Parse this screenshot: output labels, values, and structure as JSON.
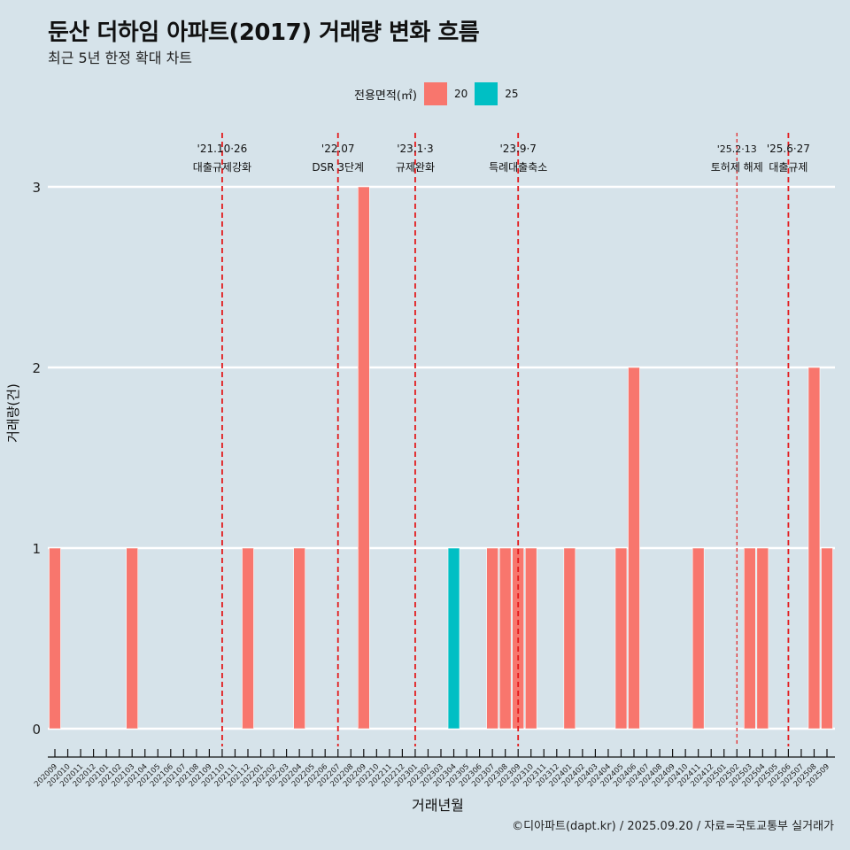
{
  "header": {
    "title": "둔산 더하임 아파트(2017) 거래량 변화 흐름",
    "subtitle": "최근 5년 한정 확대 차트"
  },
  "legend": {
    "title": "전용면적(㎡)",
    "items": [
      {
        "label": "20",
        "color": "#f8766d"
      },
      {
        "label": "25",
        "color": "#00bfc4"
      }
    ]
  },
  "caption": "©디아파트(dapt.kr) / 2025.09.20 / 자료=국토교통부 실거래가",
  "chart_data": {
    "type": "bar",
    "stacked": true,
    "title": "둔산 더하임 아파트(2017) 거래량 변화 흐름",
    "subtitle": "최근 5년 한정 확대 차트",
    "xlabel": "거래년월",
    "ylabel": "거래량(건)",
    "ylim": [
      0,
      3
    ],
    "yticks": [
      0,
      1,
      2,
      3
    ],
    "grid": true,
    "legend_position": "top",
    "categories": [
      "202009",
      "202010",
      "202011",
      "202012",
      "202101",
      "202102",
      "202103",
      "202104",
      "202105",
      "202106",
      "202107",
      "202108",
      "202109",
      "202110",
      "202111",
      "202112",
      "202201",
      "202202",
      "202203",
      "202204",
      "202205",
      "202206",
      "202207",
      "202208",
      "202209",
      "202210",
      "202211",
      "202212",
      "202301",
      "202302",
      "202303",
      "202304",
      "202305",
      "202306",
      "202307",
      "202308",
      "202309",
      "202310",
      "202311",
      "202312",
      "202401",
      "202402",
      "202403",
      "202404",
      "202405",
      "202406",
      "202407",
      "202408",
      "202409",
      "202410",
      "202411",
      "202412",
      "202501",
      "202502",
      "202503",
      "202504",
      "202505",
      "202506",
      "202507",
      "202508",
      "202509"
    ],
    "series": [
      {
        "name": "20",
        "color": "#f8766d",
        "values": [
          1,
          0,
          0,
          0,
          0,
          0,
          1,
          0,
          0,
          0,
          0,
          0,
          0,
          0,
          0,
          1,
          0,
          0,
          0,
          1,
          0,
          0,
          0,
          0,
          3,
          0,
          0,
          0,
          0,
          0,
          0,
          0,
          0,
          0,
          1,
          1,
          1,
          1,
          0,
          0,
          1,
          0,
          0,
          0,
          1,
          2,
          0,
          0,
          0,
          0,
          1,
          0,
          0,
          0,
          1,
          1,
          0,
          0,
          0,
          2,
          1
        ]
      },
      {
        "name": "25",
        "color": "#00bfc4",
        "values": [
          0,
          0,
          0,
          0,
          0,
          0,
          0,
          0,
          0,
          0,
          0,
          0,
          0,
          0,
          0,
          0,
          0,
          0,
          0,
          0,
          0,
          0,
          0,
          0,
          0,
          0,
          0,
          0,
          0,
          0,
          0,
          1,
          0,
          0,
          0,
          0,
          0,
          0,
          0,
          0,
          0,
          0,
          0,
          0,
          0,
          0,
          0,
          0,
          0,
          0,
          0,
          0,
          0,
          0,
          0,
          0,
          0,
          0,
          0,
          0,
          0
        ]
      }
    ],
    "annotations": [
      {
        "x": "202110",
        "date": "'21.10·26",
        "label": "대출규제강화",
        "style": "bold"
      },
      {
        "x": "202207",
        "date": "'22.07",
        "label": "DSR 3단계",
        "style": "bold"
      },
      {
        "x": "202301",
        "date": "'23.1·3",
        "label": "규제완화",
        "style": "bold"
      },
      {
        "x": "202309",
        "date": "'23.9·7",
        "label": "특례대출축소",
        "style": "bold"
      },
      {
        "x": "202502",
        "date": "'25.2·13",
        "label": "토허제 해제",
        "style": "thin"
      },
      {
        "x": "202506",
        "date": "'25.6·27",
        "label": "대출규제",
        "style": "bold"
      }
    ]
  }
}
